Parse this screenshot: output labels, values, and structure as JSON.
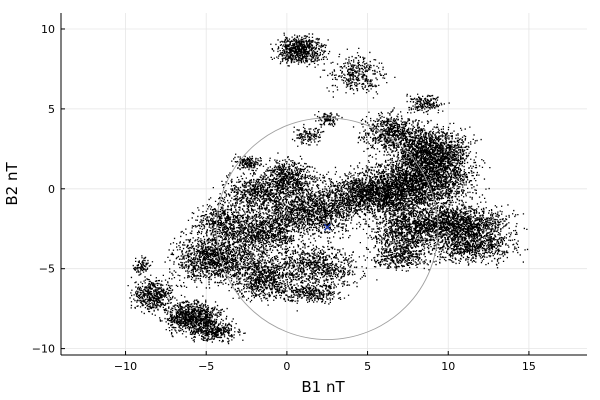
{
  "chart_data": {
    "type": "scatter",
    "title": "",
    "xlabel": "B1 nT",
    "ylabel": "B2 nT",
    "xlim": [
      -14,
      18.6
    ],
    "ylim": [
      -10.4,
      11
    ],
    "xticks": [
      -10,
      -5,
      0,
      5,
      10,
      15
    ],
    "yticks": [
      -10,
      -5,
      0,
      5,
      10
    ],
    "xtick_labels": [
      "−10",
      "−5",
      "0",
      "5",
      "10",
      "15"
    ],
    "ytick_labels": [
      "−10",
      "−5",
      "0",
      "5",
      "10"
    ],
    "grid": true,
    "legend": "none",
    "point_color": "#000000",
    "circle": {
      "center": [
        2.5,
        -2.5
      ],
      "radius": 6.9,
      "color": "#a0a0a0"
    },
    "center_marker": {
      "x": 2.5,
      "y": -2.4,
      "color": "#1f3fbf"
    },
    "clusters": [
      {
        "cx": 0.8,
        "cy": 8.7,
        "sx": 1.0,
        "sy": 0.6,
        "n": 700
      },
      {
        "cx": 4.3,
        "cy": 7.2,
        "sx": 1.2,
        "sy": 0.8,
        "n": 350
      },
      {
        "cx": 8.5,
        "cy": 5.4,
        "sx": 0.8,
        "sy": 0.4,
        "n": 180
      },
      {
        "cx": 6.5,
        "cy": 3.6,
        "sx": 1.3,
        "sy": 0.8,
        "n": 700
      },
      {
        "cx": 9.0,
        "cy": 2.2,
        "sx": 1.6,
        "sy": 1.1,
        "n": 1800
      },
      {
        "cx": 8.0,
        "cy": 0.3,
        "sx": 2.4,
        "sy": 1.1,
        "n": 2200
      },
      {
        "cx": 5.0,
        "cy": -0.3,
        "sx": 2.2,
        "sy": 0.9,
        "n": 1400
      },
      {
        "cx": 10.5,
        "cy": -2.2,
        "sx": 2.2,
        "sy": 0.8,
        "n": 1600
      },
      {
        "cx": 11.5,
        "cy": -3.6,
        "sx": 1.8,
        "sy": 0.7,
        "n": 700
      },
      {
        "cx": 7.2,
        "cy": -2.6,
        "sx": 1.4,
        "sy": 1.2,
        "n": 900
      },
      {
        "cx": 7.0,
        "cy": -4.3,
        "sx": 1.2,
        "sy": 0.5,
        "n": 300
      },
      {
        "cx": 1.3,
        "cy": 3.4,
        "sx": 0.6,
        "sy": 0.4,
        "n": 120
      },
      {
        "cx": 2.5,
        "cy": 4.4,
        "sx": 0.5,
        "sy": 0.3,
        "n": 100
      },
      {
        "cx": -2.5,
        "cy": 1.7,
        "sx": 0.6,
        "sy": 0.3,
        "n": 150
      },
      {
        "cx": 0.0,
        "cy": 0.7,
        "sx": 1.2,
        "sy": 0.8,
        "n": 700
      },
      {
        "cx": -2.0,
        "cy": -0.2,
        "sx": 1.4,
        "sy": 0.8,
        "n": 600
      },
      {
        "cx": 1.5,
        "cy": -1.4,
        "sx": 2.0,
        "sy": 1.0,
        "n": 1300
      },
      {
        "cx": -1.5,
        "cy": -2.7,
        "sx": 1.6,
        "sy": 1.0,
        "n": 900
      },
      {
        "cx": -4.0,
        "cy": -2.0,
        "sx": 1.2,
        "sy": 0.8,
        "n": 500
      },
      {
        "cx": -4.5,
        "cy": -4.3,
        "sx": 1.7,
        "sy": 1.0,
        "n": 1300
      },
      {
        "cx": -1.5,
        "cy": -5.5,
        "sx": 1.3,
        "sy": 1.0,
        "n": 800
      },
      {
        "cx": 1.8,
        "cy": -4.8,
        "sx": 1.8,
        "sy": 1.0,
        "n": 800
      },
      {
        "cx": 1.5,
        "cy": -6.5,
        "sx": 1.2,
        "sy": 0.4,
        "n": 300
      },
      {
        "cx": -8.3,
        "cy": -6.6,
        "sx": 0.9,
        "sy": 0.7,
        "n": 500
      },
      {
        "cx": -5.8,
        "cy": -8.0,
        "sx": 1.2,
        "sy": 0.7,
        "n": 900
      },
      {
        "cx": -4.5,
        "cy": -8.9,
        "sx": 1.0,
        "sy": 0.4,
        "n": 350
      },
      {
        "cx": -9.0,
        "cy": -4.8,
        "sx": 0.4,
        "sy": 0.4,
        "n": 90
      }
    ]
  }
}
